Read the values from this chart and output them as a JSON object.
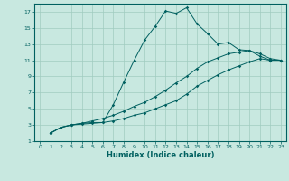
{
  "xlabel": "Humidex (Indice chaleur)",
  "xlim": [
    -0.5,
    23.5
  ],
  "ylim": [
    1,
    18
  ],
  "xticks": [
    0,
    1,
    2,
    3,
    4,
    5,
    6,
    7,
    8,
    9,
    10,
    11,
    12,
    13,
    14,
    15,
    16,
    17,
    18,
    19,
    20,
    21,
    22,
    23
  ],
  "yticks": [
    1,
    3,
    5,
    7,
    9,
    11,
    13,
    15,
    17
  ],
  "bg_color": "#c8e8e0",
  "grid_color": "#a0ccc0",
  "line_color": "#006060",
  "line1_x": [
    1,
    2,
    3,
    4,
    5,
    6,
    7,
    8,
    9,
    10,
    11,
    12,
    13,
    14,
    15,
    16,
    17,
    18,
    19,
    20,
    21,
    22,
    23
  ],
  "line1_y": [
    2,
    2.7,
    3.0,
    3.2,
    3.3,
    3.3,
    5.5,
    8.3,
    11.0,
    13.5,
    15.2,
    17.1,
    16.8,
    17.5,
    15.5,
    14.3,
    13.0,
    13.2,
    12.3,
    12.2,
    11.5,
    11.0,
    11.0
  ],
  "line2_x": [
    1,
    2,
    3,
    4,
    5,
    6,
    7,
    8,
    9,
    10,
    11,
    12,
    13,
    14,
    15,
    16,
    17,
    18,
    19,
    20,
    21,
    22,
    23
  ],
  "line2_y": [
    2,
    2.7,
    3.0,
    3.2,
    3.5,
    3.8,
    4.2,
    4.7,
    5.3,
    5.8,
    6.5,
    7.3,
    8.2,
    9.0,
    10.0,
    10.8,
    11.3,
    11.8,
    12.0,
    12.2,
    11.8,
    11.2,
    11.0
  ],
  "line3_x": [
    1,
    2,
    3,
    4,
    5,
    6,
    7,
    8,
    9,
    10,
    11,
    12,
    13,
    14,
    15,
    16,
    17,
    18,
    19,
    20,
    21,
    22,
    23
  ],
  "line3_y": [
    2,
    2.7,
    3.0,
    3.1,
    3.2,
    3.3,
    3.5,
    3.8,
    4.2,
    4.5,
    5.0,
    5.5,
    6.0,
    6.8,
    7.8,
    8.5,
    9.2,
    9.8,
    10.3,
    10.8,
    11.2,
    11.0,
    11.0
  ]
}
